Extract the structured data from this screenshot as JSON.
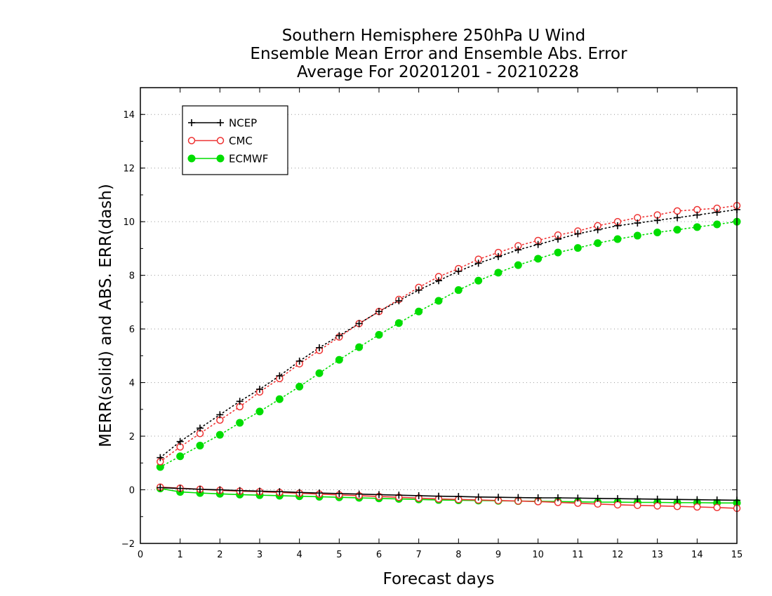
{
  "chart_data": {
    "type": "line",
    "title": [
      "Southern Hemisphere 250hPa U Wind",
      "Ensemble Mean Error and Ensemble Abs. Error",
      "Average For 20201201 - 20210228"
    ],
    "xlabel": "Forecast days",
    "ylabel": "MERR(solid) and ABS. ERR(dash)",
    "xlim": [
      0,
      15
    ],
    "ylim": [
      -2,
      15
    ],
    "xticks": [
      0,
      1,
      2,
      3,
      4,
      5,
      6,
      7,
      8,
      9,
      10,
      11,
      12,
      13,
      14,
      15
    ],
    "yticks": [
      -2,
      0,
      2,
      4,
      6,
      8,
      10,
      12,
      14
    ],
    "grid": "horizontal dotted",
    "legend_position": "top-left",
    "x": [
      0.5,
      1,
      1.5,
      2,
      2.5,
      3,
      3.5,
      4,
      4.5,
      5,
      5.5,
      6,
      6.5,
      7,
      7.5,
      8,
      8.5,
      9,
      9.5,
      10,
      10.5,
      11,
      11.5,
      12,
      12.5,
      13,
      13.5,
      14,
      14.5,
      15
    ],
    "series": [
      {
        "name": "NCEP",
        "color": "#000000",
        "marker": "plus",
        "abs_err": [
          1.2,
          1.8,
          2.3,
          2.8,
          3.3,
          3.75,
          4.25,
          4.8,
          5.3,
          5.75,
          6.2,
          6.65,
          7.05,
          7.45,
          7.8,
          8.15,
          8.45,
          8.7,
          8.95,
          9.15,
          9.35,
          9.55,
          9.7,
          9.85,
          9.95,
          10.05,
          10.15,
          10.25,
          10.35,
          10.45
        ],
        "mean_err": [
          0.08,
          0.05,
          0.02,
          0.0,
          -0.03,
          -0.05,
          -0.07,
          -0.1,
          -0.12,
          -0.14,
          -0.16,
          -0.18,
          -0.2,
          -0.22,
          -0.24,
          -0.25,
          -0.27,
          -0.28,
          -0.29,
          -0.3,
          -0.3,
          -0.31,
          -0.32,
          -0.33,
          -0.34,
          -0.35,
          -0.36,
          -0.37,
          -0.38,
          -0.39
        ]
      },
      {
        "name": "CMC",
        "color": "#ee3333",
        "marker": "open-circle",
        "abs_err": [
          1.05,
          1.6,
          2.1,
          2.6,
          3.1,
          3.65,
          4.15,
          4.7,
          5.2,
          5.7,
          6.2,
          6.65,
          7.1,
          7.55,
          7.95,
          8.25,
          8.6,
          8.85,
          9.1,
          9.3,
          9.5,
          9.65,
          9.85,
          10.0,
          10.15,
          10.25,
          10.4,
          10.45,
          10.5,
          10.6
        ],
        "mean_err": [
          0.1,
          0.06,
          0.02,
          -0.02,
          -0.05,
          -0.07,
          -0.1,
          -0.13,
          -0.16,
          -0.19,
          -0.22,
          -0.25,
          -0.28,
          -0.31,
          -0.34,
          -0.36,
          -0.38,
          -0.4,
          -0.42,
          -0.44,
          -0.47,
          -0.5,
          -0.53,
          -0.56,
          -0.58,
          -0.6,
          -0.62,
          -0.64,
          -0.66,
          -0.69
        ]
      },
      {
        "name": "ECMWF",
        "color": "#00dd00",
        "marker": "filled-circle",
        "abs_err": [
          0.85,
          1.25,
          1.65,
          2.05,
          2.5,
          2.92,
          3.38,
          3.85,
          4.35,
          4.85,
          5.32,
          5.78,
          6.22,
          6.65,
          7.05,
          7.45,
          7.8,
          8.1,
          8.38,
          8.62,
          8.85,
          9.02,
          9.2,
          9.35,
          9.48,
          9.6,
          9.7,
          9.8,
          9.9,
          10.0
        ],
        "mean_err": [
          0.05,
          -0.08,
          -0.12,
          -0.15,
          -0.18,
          -0.2,
          -0.22,
          -0.24,
          -0.26,
          -0.28,
          -0.3,
          -0.32,
          -0.34,
          -0.36,
          -0.38,
          -0.39,
          -0.4,
          -0.41,
          -0.42,
          -0.43,
          -0.44,
          -0.45,
          -0.46,
          -0.46,
          -0.47,
          -0.47,
          -0.48,
          -0.48,
          -0.49,
          -0.49
        ]
      }
    ]
  }
}
